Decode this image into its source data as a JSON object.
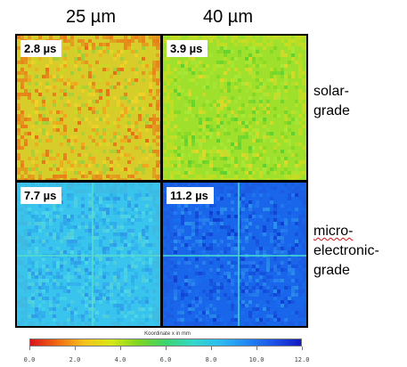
{
  "columns": [
    "25 µm",
    "40 µm"
  ],
  "rows": [
    {
      "label_lines": [
        "solar-",
        "grade"
      ]
    },
    {
      "label_lines": [
        "micro-",
        "electronic-",
        "grade"
      ]
    }
  ],
  "panels": [
    {
      "value": "2.8 µs",
      "color_base": "#d8cc2a",
      "color_edge": "#e87e18",
      "speckle": [
        "#f2a21c",
        "#c9d824",
        "#e86a16",
        "#f0d228",
        "#9cd03a"
      ]
    },
    {
      "value": "3.9 µs",
      "color_base": "#9fe02c",
      "color_edge": "#c8dc22",
      "speckle": [
        "#7ed624",
        "#c2e028",
        "#5cd030",
        "#e0d82a",
        "#a8e838"
      ]
    },
    {
      "value": "7.7 µs",
      "color_base": "#38c4ec",
      "color_edge": "#40b8e0",
      "speckle": [
        "#2ab0ea",
        "#4cd6e8",
        "#2e96e8",
        "#56d0d8",
        "#32a8f0"
      ]
    },
    {
      "value": "11.2 µs",
      "color_base": "#1a66ea",
      "color_edge": "#1c5ae0",
      "speckle": [
        "#1450dc",
        "#2a80ee",
        "#103ed0",
        "#2c92ec",
        "#1a6ef0"
      ]
    }
  ],
  "colorbar": {
    "title": "Koordinate x in mm",
    "min": 0,
    "max": 12,
    "ticks": [
      "0.0",
      "2.0",
      "4.0",
      "6.0",
      "8.0",
      "10.0",
      "12.0"
    ]
  }
}
